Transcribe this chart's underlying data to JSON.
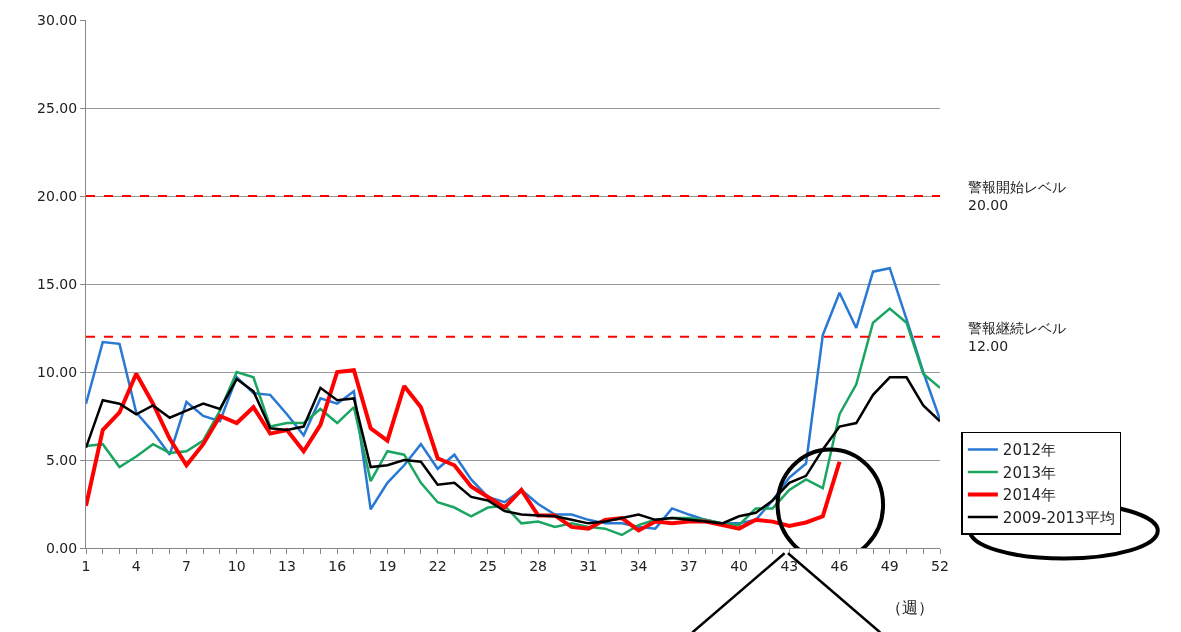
{
  "chart_data": {
    "type": "line",
    "x": [
      1,
      2,
      3,
      4,
      5,
      6,
      7,
      8,
      9,
      10,
      11,
      12,
      13,
      14,
      15,
      16,
      17,
      18,
      19,
      20,
      21,
      22,
      23,
      24,
      25,
      26,
      27,
      28,
      29,
      30,
      31,
      32,
      33,
      34,
      35,
      36,
      37,
      38,
      39,
      40,
      41,
      42,
      43,
      44,
      45,
      46,
      47,
      48,
      49,
      50,
      51,
      52
    ],
    "series": [
      {
        "name": "2012年",
        "color": "#2878d4",
        "values": [
          8.2,
          11.7,
          11.6,
          7.7,
          6.6,
          5.3,
          8.3,
          7.5,
          7.2,
          9.7,
          8.8,
          8.7,
          7.6,
          6.4,
          8.5,
          8.2,
          8.9,
          2.2,
          3.7,
          4.7,
          5.9,
          4.5,
          5.3,
          3.9,
          2.9,
          2.6,
          3.3,
          2.5,
          1.9,
          1.9,
          1.6,
          1.4,
          1.4,
          1.2,
          1.1,
          2.25,
          1.9,
          1.6,
          1.4,
          1.4,
          1.6,
          2.7,
          4.0,
          4.8,
          12.1,
          14.5,
          12.5,
          15.7,
          15.9,
          13.0,
          10.0,
          7.3
        ]
      },
      {
        "name": "2013年",
        "color": "#1aa560",
        "values": [
          5.8,
          5.9,
          4.6,
          5.2,
          5.9,
          5.4,
          5.5,
          6.1,
          7.8,
          10.0,
          9.7,
          6.9,
          7.1,
          7.1,
          7.9,
          7.1,
          8.0,
          3.8,
          5.5,
          5.3,
          3.7,
          2.6,
          2.3,
          1.8,
          2.3,
          2.4,
          1.4,
          1.5,
          1.2,
          1.4,
          1.2,
          1.1,
          0.74,
          1.3,
          1.6,
          1.7,
          1.7,
          1.6,
          1.4,
          1.3,
          2.25,
          2.25,
          3.3,
          3.9,
          3.4,
          7.6,
          9.3,
          12.8,
          13.6,
          12.8,
          9.9,
          9.1
        ]
      },
      {
        "name": "2014年",
        "color": "#ff0000",
        "values": [
          2.4,
          6.7,
          7.7,
          9.9,
          8.2,
          6.2,
          4.7,
          5.9,
          7.5,
          7.1,
          8.0,
          6.5,
          6.7,
          5.5,
          7.0,
          10.0,
          10.1,
          6.8,
          6.1,
          9.2,
          8.0,
          5.1,
          4.7,
          3.5,
          2.9,
          2.3,
          3.3,
          1.85,
          1.85,
          1.2,
          1.1,
          1.6,
          1.7,
          1.0,
          1.5,
          1.4,
          1.5,
          1.5,
          1.3,
          1.1,
          1.6,
          1.5,
          1.25,
          1.45,
          1.8,
          4.9,
          null,
          null,
          null,
          null,
          null,
          null
        ]
      },
      {
        "name": "2009-2013平均",
        "color": "#000000",
        "values": [
          5.7,
          8.4,
          8.2,
          7.6,
          8.1,
          7.4,
          7.8,
          8.2,
          7.9,
          9.6,
          8.9,
          6.8,
          6.7,
          6.9,
          9.1,
          8.4,
          8.5,
          4.6,
          4.7,
          5.0,
          4.9,
          3.6,
          3.7,
          2.9,
          2.7,
          2.1,
          1.9,
          1.85,
          1.8,
          1.6,
          1.4,
          1.5,
          1.7,
          1.9,
          1.6,
          1.7,
          1.6,
          1.5,
          1.4,
          1.8,
          2.0,
          2.7,
          3.7,
          4.1,
          5.6,
          6.9,
          7.1,
          8.7,
          9.7,
          9.7,
          8.1,
          7.2
        ]
      }
    ],
    "xlim": [
      1,
      52
    ],
    "xticks": [
      1,
      {
        "value": 2,
        "label": null
      },
      {
        "value": 3,
        "label": null
      },
      4,
      {
        "value": 5,
        "label": null
      },
      {
        "value": 6,
        "label": null
      },
      7,
      {
        "value": 8,
        "label": null
      },
      {
        "value": 9,
        "label": null
      },
      10,
      {
        "value": 11,
        "label": null
      },
      {
        "value": 12,
        "label": null
      },
      13,
      {
        "value": 14,
        "label": null
      },
      {
        "value": 15,
        "label": null
      },
      16,
      {
        "value": 17,
        "label": null
      },
      {
        "value": 18,
        "label": null
      },
      19,
      {
        "value": 20,
        "label": null
      },
      {
        "value": 21,
        "label": null
      },
      22,
      {
        "value": 23,
        "label": null
      },
      {
        "value": 24,
        "label": null
      },
      25,
      {
        "value": 26,
        "label": null
      },
      {
        "value": 27,
        "label": null
      },
      28,
      {
        "value": 29,
        "label": null
      },
      {
        "value": 30,
        "label": null
      },
      31,
      {
        "value": 32,
        "label": null
      },
      {
        "value": 33,
        "label": null
      },
      34,
      {
        "value": 35,
        "label": null
      },
      {
        "value": 36,
        "label": null
      },
      37,
      {
        "value": 38,
        "label": null
      },
      {
        "value": 39,
        "label": null
      },
      40,
      {
        "value": 41,
        "label": null
      },
      {
        "value": 42,
        "label": null
      },
      43,
      {
        "value": 44,
        "label": null
      },
      {
        "value": 45,
        "label": null
      },
      46,
      {
        "value": 47,
        "label": null
      },
      {
        "value": 48,
        "label": null
      },
      49,
      {
        "value": 50,
        "label": null
      },
      {
        "value": 51,
        "label": null
      },
      52
    ],
    "ylim": [
      0,
      30
    ],
    "yticks": [
      {
        "value": 0,
        "label": "0.00"
      },
      {
        "value": 5,
        "label": "5.00"
      },
      {
        "value": 10,
        "label": "10.00"
      },
      {
        "value": 15,
        "label": "15.00"
      },
      {
        "value": 20,
        "label": "20.00"
      },
      {
        "value": 25,
        "label": "25.00"
      },
      {
        "value": 30,
        "label": "30.00"
      }
    ],
    "grid": "y",
    "legend": "right",
    "marker": "none",
    "line_style": "solid",
    "ref_lines": [
      {
        "axis": "y",
        "value": 20,
        "label": "警報開始レベル\n20.00",
        "color": "#ff0000",
        "line_style": "dashed"
      },
      {
        "axis": "y",
        "value": 12,
        "label": "警報継続レベル\n12.00",
        "color": "#ff0000",
        "line_style": "dashed"
      }
    ],
    "annotations": [
      "（週）"
    ]
  }
}
